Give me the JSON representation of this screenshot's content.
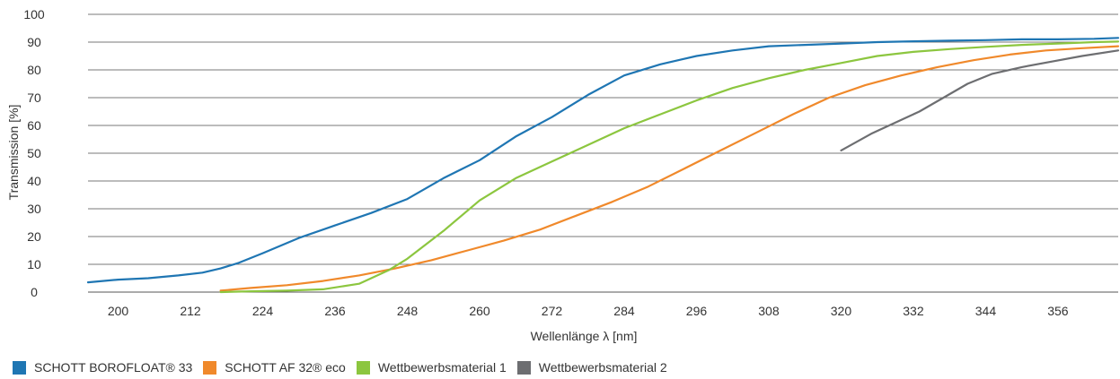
{
  "chart_data": {
    "type": "line",
    "title": "",
    "xlabel": "Wellenlänge λ  [nm]",
    "ylabel": "Transmission [%]",
    "xlim": [
      195,
      366
    ],
    "ylim": [
      0,
      100
    ],
    "x_ticks": [
      200,
      212,
      224,
      236,
      248,
      260,
      272,
      284,
      296,
      308,
      320,
      332,
      344,
      356
    ],
    "y_ticks": [
      0,
      10,
      20,
      30,
      40,
      50,
      60,
      70,
      80,
      90,
      100
    ],
    "grid": "horizontal",
    "legend_position": "bottom-left",
    "series": [
      {
        "name": "SCHOTT BOROFLOAT® 33",
        "color": "#1f76b3",
        "points": [
          [
            195,
            3.5
          ],
          [
            200,
            4.5
          ],
          [
            205,
            5
          ],
          [
            210,
            6
          ],
          [
            214,
            7
          ],
          [
            217,
            8.5
          ],
          [
            220,
            10.5
          ],
          [
            224,
            14
          ],
          [
            230,
            19.5
          ],
          [
            236,
            24
          ],
          [
            242,
            28.5
          ],
          [
            248,
            33.5
          ],
          [
            254,
            41
          ],
          [
            260,
            47.5
          ],
          [
            266,
            56
          ],
          [
            272,
            63
          ],
          [
            278,
            71
          ],
          [
            284,
            78
          ],
          [
            290,
            82
          ],
          [
            296,
            85
          ],
          [
            302,
            87
          ],
          [
            308,
            88.5
          ],
          [
            314,
            89
          ],
          [
            320,
            89.5
          ],
          [
            326,
            90
          ],
          [
            332,
            90.3
          ],
          [
            338,
            90.5
          ],
          [
            344,
            90.7
          ],
          [
            350,
            91
          ],
          [
            356,
            91
          ],
          [
            362,
            91.2
          ],
          [
            366,
            91.5
          ]
        ]
      },
      {
        "name": "SCHOTT AF 32® eco",
        "color": "#f0892b",
        "points": [
          [
            217,
            0.5
          ],
          [
            222,
            1.5
          ],
          [
            228,
            2.5
          ],
          [
            234,
            4
          ],
          [
            240,
            6
          ],
          [
            246,
            8.5
          ],
          [
            252,
            11.5
          ],
          [
            258,
            15
          ],
          [
            264,
            18.5
          ],
          [
            270,
            22.5
          ],
          [
            276,
            27.5
          ],
          [
            282,
            32.5
          ],
          [
            288,
            38
          ],
          [
            294,
            44.5
          ],
          [
            300,
            51
          ],
          [
            306,
            57.5
          ],
          [
            312,
            64
          ],
          [
            318,
            70
          ],
          [
            324,
            74.5
          ],
          [
            330,
            78
          ],
          [
            336,
            81
          ],
          [
            342,
            83.5
          ],
          [
            348,
            85.5
          ],
          [
            354,
            87
          ],
          [
            360,
            87.8
          ],
          [
            366,
            88.5
          ]
        ]
      },
      {
        "name": "Wettbewerbsmaterial 1",
        "color": "#8cc63f",
        "points": [
          [
            217,
            0
          ],
          [
            222,
            0.3
          ],
          [
            228,
            0.5
          ],
          [
            234,
            1
          ],
          [
            240,
            3
          ],
          [
            245,
            8
          ],
          [
            248,
            12
          ],
          [
            254,
            22
          ],
          [
            260,
            33
          ],
          [
            266,
            41
          ],
          [
            272,
            47
          ],
          [
            278,
            53
          ],
          [
            284,
            59
          ],
          [
            290,
            64
          ],
          [
            296,
            69
          ],
          [
            302,
            73.5
          ],
          [
            308,
            77
          ],
          [
            314,
            80
          ],
          [
            320,
            82.5
          ],
          [
            326,
            85
          ],
          [
            332,
            86.5
          ],
          [
            338,
            87.5
          ],
          [
            344,
            88.3
          ],
          [
            350,
            89
          ],
          [
            356,
            89.5
          ],
          [
            362,
            90
          ],
          [
            366,
            90.2
          ]
        ]
      },
      {
        "name": "Wettbewerbsmaterial 2",
        "color": "#6d6e71",
        "points": [
          [
            320,
            51
          ],
          [
            325,
            57
          ],
          [
            329,
            61
          ],
          [
            333,
            65
          ],
          [
            337,
            70
          ],
          [
            341,
            75
          ],
          [
            345,
            78.5
          ],
          [
            350,
            81
          ],
          [
            355,
            83
          ],
          [
            360,
            85
          ],
          [
            366,
            87
          ]
        ]
      }
    ]
  }
}
